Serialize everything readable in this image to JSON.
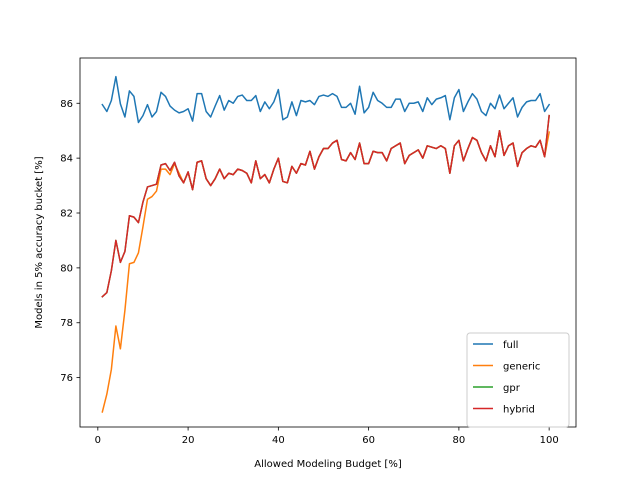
{
  "chart_data": {
    "type": "line",
    "title": "",
    "xlabel": "Allowed Modeling Budget [%]",
    "ylabel": "Models in 5% accuracy bucket [%]",
    "xlim": [
      -3.95,
      105.95
    ],
    "ylim": [
      74.2,
      87.65
    ],
    "xticks": [
      0,
      20,
      40,
      60,
      80,
      100
    ],
    "yticks": [
      76,
      78,
      80,
      82,
      84,
      86
    ],
    "grid": false,
    "legend_position": "lower-right",
    "series": [
      {
        "name": "full",
        "color": "#1f77b4",
        "x": [
          1,
          2,
          3,
          4,
          5,
          6,
          7,
          8,
          9,
          10,
          11,
          12,
          13,
          14,
          15,
          16,
          17,
          18,
          19,
          20,
          21,
          22,
          23,
          24,
          25,
          26,
          27,
          28,
          29,
          30,
          31,
          32,
          33,
          34,
          35,
          36,
          37,
          38,
          39,
          40,
          41,
          42,
          43,
          44,
          45,
          46,
          47,
          48,
          49,
          50,
          51,
          52,
          53,
          54,
          55,
          56,
          57,
          58,
          59,
          60,
          61,
          62,
          63,
          64,
          65,
          66,
          67,
          68,
          69,
          70,
          71,
          72,
          73,
          74,
          75,
          76,
          77,
          78,
          79,
          80,
          81,
          82,
          83,
          84,
          85,
          86,
          87,
          88,
          89,
          90,
          91,
          92,
          93,
          94,
          95,
          96,
          97,
          98,
          99,
          100
        ],
        "values": [
          85.95,
          85.7,
          86.1,
          86.97,
          85.98,
          85.5,
          86.45,
          86.25,
          85.3,
          85.55,
          85.95,
          85.5,
          85.7,
          86.4,
          86.25,
          85.9,
          85.75,
          85.65,
          85.7,
          85.8,
          85.35,
          86.35,
          86.35,
          85.7,
          85.5,
          85.9,
          86.28,
          85.75,
          86.1,
          86.0,
          86.25,
          86.3,
          86.1,
          86.1,
          86.28,
          85.7,
          86.05,
          85.8,
          86.05,
          86.5,
          85.4,
          85.5,
          86.05,
          85.55,
          86.1,
          86.05,
          86.1,
          85.95,
          86.25,
          86.3,
          86.25,
          86.35,
          86.25,
          85.85,
          85.85,
          86.0,
          85.6,
          86.62,
          85.65,
          85.85,
          86.4,
          86.1,
          86.0,
          85.85,
          85.85,
          86.15,
          86.15,
          85.7,
          86.0,
          86.0,
          86.05,
          85.7,
          86.2,
          85.95,
          86.15,
          86.2,
          86.28,
          85.4,
          86.2,
          86.5,
          85.7,
          86.05,
          86.35,
          86.15,
          85.7,
          85.55,
          86.0,
          85.8,
          86.3,
          85.8,
          86.0,
          86.2,
          85.5,
          85.85,
          86.05,
          86.1,
          86.1,
          86.35,
          85.7,
          85.95
        ]
      },
      {
        "name": "generic",
        "color": "#ff7f0e",
        "x": [
          1,
          2,
          3,
          4,
          5,
          6,
          7,
          8,
          9,
          10,
          11,
          12,
          13,
          14,
          15,
          16,
          17,
          18,
          19,
          20,
          21,
          22,
          23,
          24,
          25,
          26,
          27,
          28,
          29,
          30,
          31,
          32,
          33,
          34,
          35,
          36,
          37,
          38,
          39,
          40,
          41,
          42,
          43,
          44,
          45,
          46,
          47,
          48,
          49,
          50,
          51,
          52,
          53,
          54,
          55,
          56,
          57,
          58,
          59,
          60,
          61,
          62,
          63,
          64,
          65,
          66,
          67,
          68,
          69,
          70,
          71,
          72,
          73,
          74,
          75,
          76,
          77,
          78,
          79,
          80,
          81,
          82,
          83,
          84,
          85,
          86,
          87,
          88,
          89,
          90,
          91,
          92,
          93,
          94,
          95,
          96,
          97,
          98,
          99,
          100
        ],
        "values": [
          74.75,
          75.4,
          76.3,
          77.88,
          77.05,
          78.45,
          80.15,
          80.2,
          80.55,
          81.5,
          82.5,
          82.6,
          82.8,
          83.6,
          83.6,
          83.4,
          83.8,
          83.45,
          83.1,
          83.48,
          82.85,
          83.85,
          83.9,
          83.25,
          83.0,
          83.25,
          83.6,
          83.25,
          83.45,
          83.4,
          83.6,
          83.55,
          83.45,
          83.1,
          83.9,
          83.25,
          83.4,
          83.1,
          83.6,
          84.0,
          83.15,
          83.1,
          83.7,
          83.45,
          83.8,
          83.75,
          84.25,
          83.6,
          84.05,
          84.35,
          84.35,
          84.55,
          84.65,
          83.95,
          83.9,
          84.2,
          83.95,
          84.55,
          83.8,
          83.8,
          84.25,
          84.2,
          84.2,
          83.9,
          84.35,
          84.45,
          84.55,
          83.8,
          84.1,
          84.2,
          84.3,
          84.0,
          84.45,
          84.4,
          84.35,
          84.45,
          84.35,
          83.45,
          84.45,
          84.65,
          83.9,
          84.35,
          84.75,
          84.65,
          84.2,
          83.9,
          84.45,
          84.05,
          85.0,
          84.1,
          84.45,
          84.55,
          83.7,
          84.2,
          84.35,
          84.45,
          84.4,
          84.65,
          84.05,
          84.95
        ]
      },
      {
        "name": "gpr",
        "color": "#2ca02c",
        "x": [
          1,
          2,
          3,
          4,
          5,
          6,
          7,
          8,
          9,
          10,
          11,
          12,
          13,
          14,
          15,
          16,
          17,
          18,
          19,
          20,
          21,
          22,
          23,
          24,
          25,
          26,
          27,
          28,
          29,
          30,
          31,
          32,
          33,
          34,
          35,
          36,
          37,
          38,
          39,
          40,
          41,
          42,
          43,
          44,
          45,
          46,
          47,
          48,
          49,
          50,
          51,
          52,
          53,
          54,
          55,
          56,
          57,
          58,
          59,
          60,
          61,
          62,
          63,
          64,
          65,
          66,
          67,
          68,
          69,
          70,
          71,
          72,
          73,
          74,
          75,
          76,
          77,
          78,
          79,
          80,
          81,
          82,
          83,
          84,
          85,
          86,
          87,
          88,
          89,
          90,
          91,
          92,
          93,
          94,
          95,
          96,
          97,
          98,
          99,
          100
        ],
        "values": [
          78.95,
          79.1,
          79.9,
          81.0,
          80.2,
          80.6,
          81.9,
          81.85,
          81.65,
          82.4,
          82.95,
          83.0,
          83.05,
          83.75,
          83.8,
          83.55,
          83.85,
          83.35,
          83.1,
          83.5,
          82.85,
          83.85,
          83.9,
          83.25,
          83.0,
          83.25,
          83.6,
          83.25,
          83.45,
          83.4,
          83.6,
          83.55,
          83.45,
          83.1,
          83.9,
          83.25,
          83.4,
          83.1,
          83.6,
          84.0,
          83.15,
          83.1,
          83.7,
          83.45,
          83.8,
          83.75,
          84.25,
          83.6,
          84.05,
          84.35,
          84.35,
          84.55,
          84.65,
          83.95,
          83.9,
          84.2,
          83.95,
          84.55,
          83.8,
          83.8,
          84.25,
          84.2,
          84.2,
          83.9,
          84.35,
          84.45,
          84.55,
          83.8,
          84.1,
          84.2,
          84.3,
          84.0,
          84.45,
          84.4,
          84.35,
          84.45,
          84.35,
          83.45,
          84.45,
          84.65,
          83.9,
          84.35,
          84.75,
          84.65,
          84.2,
          83.9,
          84.45,
          84.05,
          85.0,
          84.1,
          84.45,
          84.55,
          83.7,
          84.2,
          84.35,
          84.45,
          84.4,
          84.65,
          84.05,
          85.55
        ]
      },
      {
        "name": "hybrid",
        "color": "#d62728",
        "x": [
          1,
          2,
          3,
          4,
          5,
          6,
          7,
          8,
          9,
          10,
          11,
          12,
          13,
          14,
          15,
          16,
          17,
          18,
          19,
          20,
          21,
          22,
          23,
          24,
          25,
          26,
          27,
          28,
          29,
          30,
          31,
          32,
          33,
          34,
          35,
          36,
          37,
          38,
          39,
          40,
          41,
          42,
          43,
          44,
          45,
          46,
          47,
          48,
          49,
          50,
          51,
          52,
          53,
          54,
          55,
          56,
          57,
          58,
          59,
          60,
          61,
          62,
          63,
          64,
          65,
          66,
          67,
          68,
          69,
          70,
          71,
          72,
          73,
          74,
          75,
          76,
          77,
          78,
          79,
          80,
          81,
          82,
          83,
          84,
          85,
          86,
          87,
          88,
          89,
          90,
          91,
          92,
          93,
          94,
          95,
          96,
          97,
          98,
          99,
          100
        ],
        "values": [
          78.95,
          79.1,
          79.9,
          81.0,
          80.2,
          80.6,
          81.9,
          81.85,
          81.65,
          82.4,
          82.95,
          83.0,
          83.05,
          83.75,
          83.8,
          83.55,
          83.85,
          83.35,
          83.1,
          83.5,
          82.85,
          83.85,
          83.9,
          83.25,
          83.0,
          83.25,
          83.6,
          83.25,
          83.45,
          83.4,
          83.6,
          83.55,
          83.45,
          83.1,
          83.9,
          83.25,
          83.4,
          83.1,
          83.6,
          84.0,
          83.15,
          83.1,
          83.7,
          83.45,
          83.8,
          83.75,
          84.25,
          83.6,
          84.05,
          84.35,
          84.35,
          84.55,
          84.65,
          83.95,
          83.9,
          84.2,
          83.95,
          84.55,
          83.8,
          83.8,
          84.25,
          84.2,
          84.2,
          83.9,
          84.35,
          84.45,
          84.55,
          83.8,
          84.1,
          84.2,
          84.3,
          84.0,
          84.45,
          84.4,
          84.35,
          84.45,
          84.35,
          83.45,
          84.45,
          84.65,
          83.9,
          84.35,
          84.75,
          84.65,
          84.2,
          83.9,
          84.45,
          84.05,
          85.0,
          84.1,
          84.45,
          84.55,
          83.7,
          84.2,
          84.35,
          84.45,
          84.4,
          84.65,
          84.05,
          85.55
        ]
      }
    ]
  }
}
